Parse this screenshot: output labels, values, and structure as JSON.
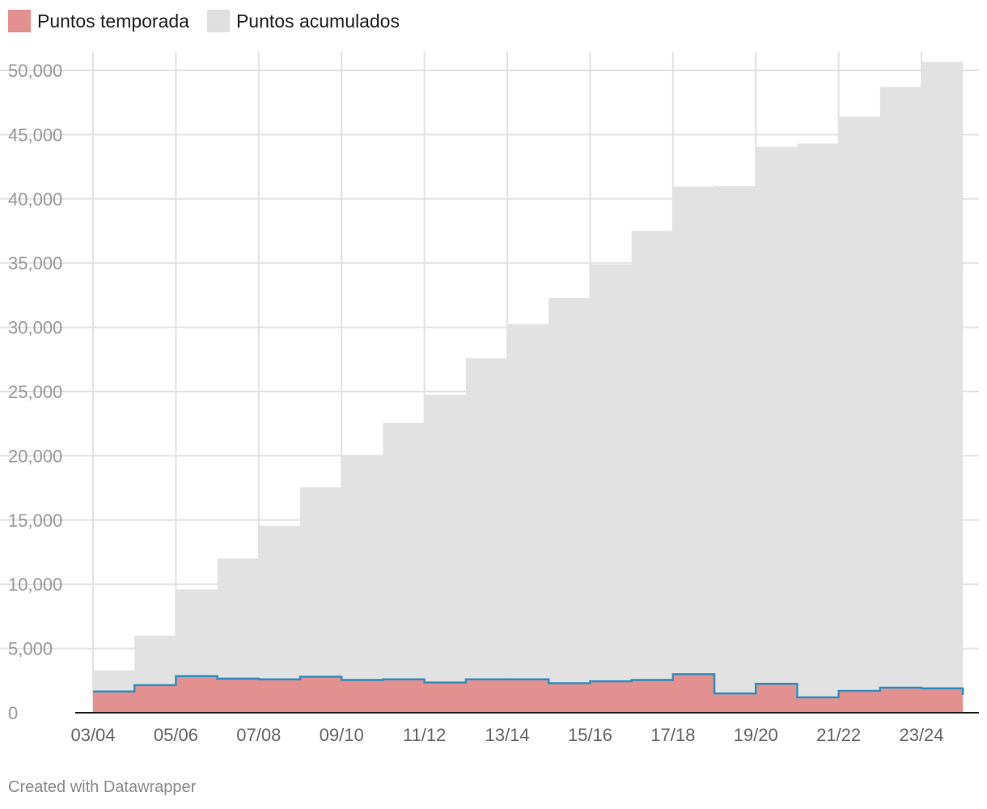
{
  "footer": {
    "credit": "Created with Datawrapper"
  },
  "colors": {
    "season_fill": "#e39090",
    "season_line": "#2f8fbf",
    "cumulative_fill": "#e0e0e0",
    "grid": "#e2e2e2",
    "axis": "#222222",
    "tick_label": "#999999",
    "x_tick_label": "#666666"
  },
  "chart_data": {
    "type": "area",
    "step": true,
    "x": [
      "03/04",
      "04/05",
      "05/06",
      "06/07",
      "07/08",
      "08/09",
      "09/10",
      "10/11",
      "11/12",
      "12/13",
      "13/14",
      "14/15",
      "15/16",
      "16/17",
      "17/18",
      "18/19",
      "19/20",
      "20/21",
      "21/22",
      "22/23",
      "23/24"
    ],
    "x_tick_labels": [
      "03/04",
      "05/06",
      "07/08",
      "09/10",
      "11/12",
      "13/14",
      "15/16",
      "17/18",
      "19/20",
      "21/22",
      "23/24"
    ],
    "series": [
      {
        "name": "Puntos temporada",
        "values": [
          1650,
          2150,
          2850,
          2650,
          2600,
          2800,
          2550,
          2600,
          2350,
          2600,
          2600,
          2300,
          2450,
          2550,
          3000,
          1500,
          2250,
          1200,
          1700,
          1950,
          1900
        ]
      },
      {
        "name": "Puntos acumulados",
        "values": [
          3300,
          6000,
          9600,
          12000,
          14550,
          17550,
          20000,
          22550,
          24750,
          27600,
          30250,
          32300,
          34900,
          37500,
          40950,
          41000,
          44050,
          44300,
          46400,
          48700,
          50650
        ]
      }
    ],
    "ylim": [
      0,
      50000
    ],
    "yticks": [
      0,
      5000,
      10000,
      15000,
      20000,
      25000,
      30000,
      35000,
      40000,
      45000,
      50000
    ],
    "ytick_labels": [
      "0",
      "5,000",
      "10,000",
      "15,000",
      "20,000",
      "25,000",
      "30,000",
      "35,000",
      "40,000",
      "45,000",
      "50,000"
    ],
    "grid": true,
    "legend_position": "top-left"
  }
}
